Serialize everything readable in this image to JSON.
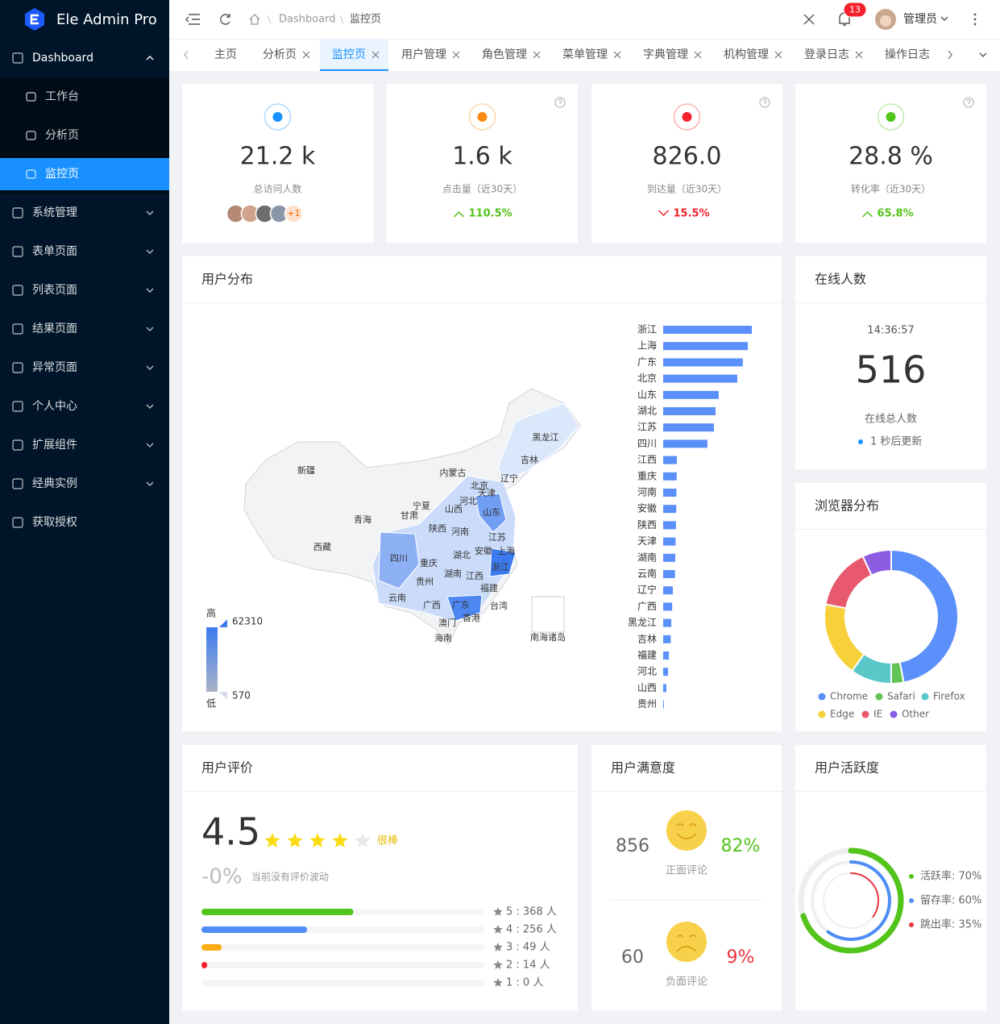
{
  "sidebar": {
    "brand": "Ele Admin Pro",
    "menu": [
      {
        "label": "Dashboard",
        "children": [
          "工作台",
          "分析页",
          "监控页"
        ],
        "active_child": 2
      },
      {
        "label": "系统管理"
      },
      {
        "label": "表单页面"
      },
      {
        "label": "列表页面"
      },
      {
        "label": "结果页面"
      },
      {
        "label": "异常页面"
      },
      {
        "label": "个人中心"
      },
      {
        "label": "扩展组件"
      },
      {
        "label": "经典实例"
      },
      {
        "label": "获取授权"
      }
    ]
  },
  "header": {
    "breadcrumb": [
      "Dashboard",
      "监控页"
    ],
    "notifications": 13,
    "user": "管理员"
  },
  "tabs": {
    "items": [
      "主页",
      "分析页",
      "监控页",
      "用户管理",
      "角色管理",
      "菜单管理",
      "字典管理",
      "机构管理",
      "登录日志",
      "操作日志"
    ],
    "active": 2
  },
  "stats": [
    {
      "value": "21.2 k",
      "label": "总访问人数",
      "icon_color": "#1890ff",
      "more": "+1"
    },
    {
      "value": "1.6 k",
      "label": "点击量（近30天）",
      "icon_color": "#fa8c16",
      "change": "110.5%",
      "trend": "up"
    },
    {
      "value": "826.0",
      "label": "到达量（近30天）",
      "icon_color": "#f5222d",
      "change": "15.5%",
      "trend": "down"
    },
    {
      "value": "28.8 %",
      "label": "转化率（近30天）",
      "icon_color": "#52c41a",
      "change": "65.8%",
      "trend": "up"
    }
  ],
  "user_distribution": {
    "title": "用户分布",
    "map": {
      "regions": [
        "新疆",
        "西藏",
        "青海",
        "甘肃",
        "宁夏",
        "内蒙古",
        "黑龙江",
        "吉林",
        "辽宁",
        "北京",
        "天津",
        "河北",
        "山西",
        "山东",
        "陕西",
        "河南",
        "江苏",
        "安徽",
        "上海",
        "湖北",
        "四川",
        "重庆",
        "浙江",
        "湖南",
        "江西",
        "贵州",
        "福建",
        "云南",
        "广西",
        "广东",
        "台湾",
        "香港",
        "澳门",
        "海南",
        "南海诸岛"
      ]
    },
    "visual_map": {
      "high": "高",
      "low": "低",
      "max": 62310,
      "min": 570
    },
    "bar_chart": {
      "type": "bar",
      "categories": [
        "浙江",
        "上海",
        "广东",
        "北京",
        "山东",
        "湖北",
        "江苏",
        "四川",
        "江西",
        "重庆",
        "河南",
        "安徽",
        "陕西",
        "天津",
        "湖南",
        "云南",
        "辽宁",
        "广西",
        "黑龙江",
        "吉林",
        "福建",
        "河北",
        "山西",
        "贵州"
      ],
      "values": [
        62310,
        59500,
        56000,
        52100,
        39000,
        36800,
        35700,
        31100,
        9600,
        9500,
        9300,
        9200,
        9000,
        8700,
        8500,
        8300,
        6800,
        6300,
        5700,
        5300,
        4000,
        3400,
        2200,
        570
      ],
      "color": "#5b8ff9"
    }
  },
  "online": {
    "title": "在线人数",
    "time": "14:36:57",
    "count": 516,
    "label": "在线总人数",
    "note": "1 秒后更新"
  },
  "browser": {
    "title": "浏览器分布",
    "chart": {
      "type": "pie",
      "categories": [
        "Chrome",
        "Safari",
        "Firefox",
        "Edge",
        "IE",
        "Other"
      ],
      "values": [
        47,
        3,
        10,
        18,
        15,
        7
      ],
      "colors": [
        "#5b8ff9",
        "#61c454",
        "#5ac8c8",
        "#f6d13a",
        "#e8596e",
        "#8c5ce3"
      ]
    }
  },
  "rating": {
    "title": "用户评价",
    "score": 4.5,
    "grade": "很棒",
    "change": "-0%",
    "change_note": "当前没有评价波动",
    "breakdown": [
      {
        "label": "5 : 368 人",
        "count": 368,
        "color": "#52c41a"
      },
      {
        "label": "4 : 256 人",
        "count": 256,
        "color": "#4e8df5"
      },
      {
        "label": "3 : 49 人",
        "count": 49,
        "color": "#faad14"
      },
      {
        "label": "2 : 14 人",
        "count": 14,
        "color": "#f5222d"
      },
      {
        "label": "1 : 0 人",
        "count": 0,
        "color": "#bfbfbf"
      }
    ]
  },
  "satisfaction": {
    "title": "用户满意度",
    "positive": {
      "count": 856,
      "percent": 82,
      "percent_label": "82%",
      "label": "正面评论"
    },
    "negative": {
      "count": 60,
      "percent": 9,
      "percent_label": "9%",
      "label": "负面评论"
    }
  },
  "activity": {
    "title": "用户活跃度",
    "rings": [
      {
        "label": "活跃率: 70%",
        "value": 70,
        "color": "#52c41a"
      },
      {
        "label": "留存率: 60%",
        "value": 60,
        "color": "#4e8df5"
      },
      {
        "label": "跳出率: 35%",
        "value": 35,
        "color": "#e8353e"
      }
    ]
  }
}
